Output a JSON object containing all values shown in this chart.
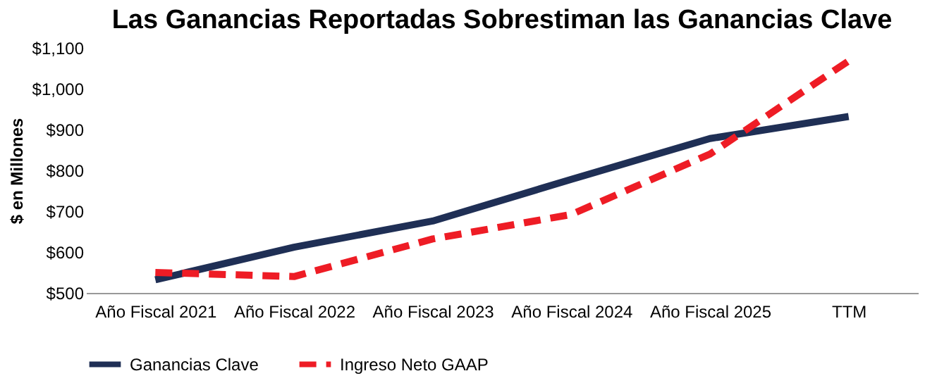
{
  "chart_data": {
    "type": "line",
    "title": "Las Ganancias Reportadas Sobrestiman las Ganancias Clave",
    "ylabel": "$ en Millones",
    "categories": [
      "Año Fiscal 2021",
      "Año Fiscal 2022",
      "Año Fiscal 2023",
      "Año Fiscal 2024",
      "Año Fiscal 2025",
      "TTM"
    ],
    "series": [
      {
        "name": "Ganancias Clave",
        "color": "#1f2f55",
        "line_style": "solid",
        "values": [
          532,
          612,
          676,
          778,
          878,
          932
        ]
      },
      {
        "name": "Ingreso Neto GAAP",
        "color": "#ee1c25",
        "line_style": "dashed",
        "values": [
          550,
          540,
          632,
          692,
          840,
          1068
        ]
      }
    ],
    "ylim": [
      500,
      1100
    ],
    "yticks": [
      {
        "value": 500,
        "label": "$500"
      },
      {
        "value": 600,
        "label": "$600"
      },
      {
        "value": 700,
        "label": "$700"
      },
      {
        "value": 800,
        "label": "$800"
      },
      {
        "value": 900,
        "label": "$900"
      },
      {
        "value": 1000,
        "label": "$1,000"
      },
      {
        "value": 1100,
        "label": "$1,100"
      }
    ],
    "grid": false,
    "legend": "bottom",
    "marker": "none"
  }
}
